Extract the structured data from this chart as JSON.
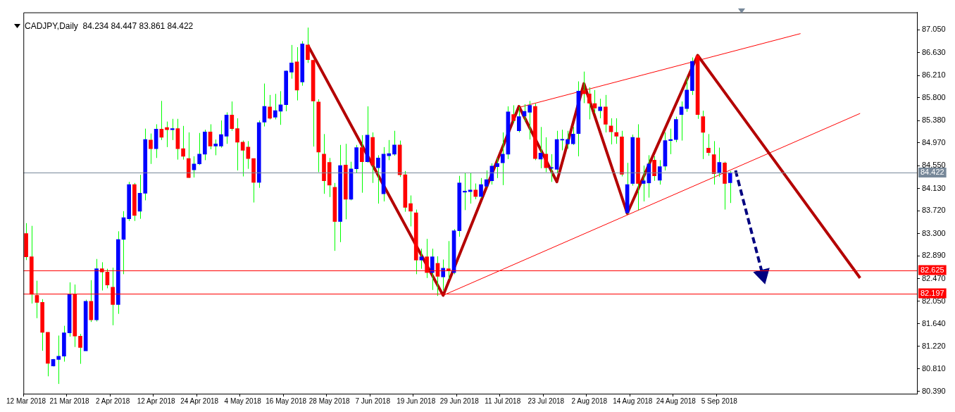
{
  "chart_data": {
    "type": "candlestick",
    "title": "CADJPY,Daily  84.234 84.447 83.861 84.422",
    "categories": [
      "12 Mar 2018",
      null,
      null,
      null,
      null,
      null,
      null,
      null,
      "21 Mar 2018",
      null,
      null,
      null,
      null,
      null,
      null,
      null,
      "2 Apr 2018",
      null,
      null,
      null,
      null,
      null,
      null,
      null,
      "12 Apr 2018",
      null,
      null,
      null,
      null,
      null,
      null,
      null,
      "24 Apr 2018",
      null,
      null,
      null,
      null,
      null,
      null,
      null,
      "4 May 2018",
      null,
      null,
      null,
      null,
      null,
      null,
      null,
      "16 May 2018",
      null,
      null,
      null,
      null,
      null,
      null,
      null,
      "28 May 2018",
      null,
      null,
      null,
      null,
      null,
      null,
      null,
      "7 Jun 2018",
      null,
      null,
      null,
      null,
      null,
      null,
      null,
      "19 Jun 2018",
      null,
      null,
      null,
      null,
      null,
      null,
      null,
      "29 Jun 2018",
      null,
      null,
      null,
      null,
      null,
      null,
      null,
      "11 Jul 2018",
      null,
      null,
      null,
      null,
      null,
      null,
      null,
      "23 Jul 2018",
      null,
      null,
      null,
      null,
      null,
      null,
      null,
      "2 Aug 2018",
      null,
      null,
      null,
      null,
      null,
      null,
      null,
      "14 Aug 2018",
      null,
      null,
      null,
      null,
      null,
      null,
      null,
      "24 Aug 2018",
      null,
      null,
      null,
      null,
      null,
      null,
      null,
      "5 Sep 2018",
      null,
      null,
      null,
      null,
      null,
      null,
      null,
      null,
      null,
      null,
      null,
      null,
      null,
      null,
      null,
      null,
      null,
      null,
      null,
      null,
      null,
      null,
      null,
      null,
      null,
      null,
      null,
      null,
      null,
      null,
      null,
      null,
      null,
      null,
      null,
      null
    ],
    "ylim": [
      80.35,
      87.37
    ],
    "yticks": [
      {
        "value": 80.39,
        "label": "80.390"
      },
      {
        "value": 80.81,
        "label": "80.810"
      },
      {
        "value": 81.22,
        "label": "81.220"
      },
      {
        "value": 81.64,
        "label": "81.640"
      },
      {
        "value": 82.05,
        "label": "82.050"
      },
      {
        "value": 82.47,
        "label": "82.470"
      },
      {
        "value": 82.89,
        "label": "82.890"
      },
      {
        "value": 83.3,
        "label": "83.300"
      },
      {
        "value": 83.72,
        "label": "83.720"
      },
      {
        "value": 84.13,
        "label": "84.130"
      },
      {
        "value": 84.55,
        "label": "84.550"
      },
      {
        "value": 84.97,
        "label": "84.970"
      },
      {
        "value": 85.38,
        "label": "85.380"
      },
      {
        "value": 85.8,
        "label": "85.800"
      },
      {
        "value": 86.21,
        "label": "86.210"
      },
      {
        "value": 86.63,
        "label": "86.630"
      },
      {
        "value": 87.05,
        "label": "87.050"
      }
    ],
    "ref_lines": [
      {
        "axis": "y",
        "value": 84.422,
        "label": "84.422",
        "color": "#778899"
      },
      {
        "axis": "y",
        "value": 82.625,
        "label": "82.625",
        "color": "#ff0000"
      },
      {
        "axis": "y",
        "value": 82.197,
        "label": "82.197",
        "color": "#ff0000"
      }
    ],
    "series": [
      {
        "type": "candlestick",
        "color": "#00ff00",
        "colors": [
          "#ff0000",
          "#ff0000",
          "#ff0000",
          "#ff0000",
          "#ff0000",
          "#0000ff",
          "#0000ff",
          "#0000ff",
          "#0000ff",
          "#ff0000",
          "#ff0000",
          "#0000ff",
          "#ff0000",
          "#0000ff",
          "#ff0000",
          "#ff0000",
          "#ff0000",
          "#0000ff",
          "#0000ff",
          "#0000ff",
          "#ff0000",
          "#0000ff",
          "#0000ff",
          "#ff0000",
          "#0000ff",
          "#ff0000",
          "#ff0000",
          "#0000ff",
          "#ff0000",
          "#ff0000",
          "#ff0000",
          "#0000ff",
          "#0000ff",
          "#0000ff",
          "#ff0000",
          "#0000ff",
          "#0000ff",
          "#0000ff",
          "#ff0000",
          "#ff0000",
          "#ff0000",
          "#ff0000",
          "#ff0000",
          "#0000ff",
          "#0000ff",
          "#ff0000",
          "#0000ff",
          "#0000ff",
          "#0000ff",
          "#0000ff",
          "#ff0000",
          "#0000ff",
          "#ff0000",
          "#ff0000",
          "#ff0000",
          "#ff0000",
          "#ff0000",
          "#ff0000",
          "#0000ff",
          "#ff0000",
          "#0000ff",
          "#0000ff",
          "#ff0000",
          "#0000ff",
          "#ff0000",
          "#0000ff",
          "#0000ff",
          "#0000ff",
          "#0000ff",
          "#ff0000",
          "#ff0000",
          "#ff0000",
          "#ff0000",
          "#0000ff",
          "#ff0000",
          "#0000ff",
          "#ff0000",
          "#0000ff",
          "#ff0000",
          "#0000ff",
          "#0000ff",
          "#0000ff",
          "#0000ff",
          "#ff0000",
          "#0000ff",
          "#0000ff",
          "#0000ff",
          "#0000ff",
          "#0000ff",
          "#0000ff",
          "#ff0000",
          "#0000ff",
          "#0000ff",
          "#0000ff",
          "#ff0000",
          "#0000ff",
          "#ff0000",
          "#0000ff",
          "#0000ff",
          "#0000ff",
          "#0000ff",
          "#0000ff",
          "#0000ff",
          "#ff0000",
          "#ff0000",
          "#ff0000",
          "#0000ff",
          "#ff0000",
          "#ff0000",
          "#ff0000",
          "#ff0000",
          "#0000ff",
          "#0000ff",
          "#ff0000",
          "#0000ff",
          "#0000ff",
          "#ff0000",
          "#0000ff",
          "#0000ff",
          "#0000ff",
          "#0000ff",
          "#0000ff",
          "#0000ff",
          "#0000ff",
          "#ff0000",
          "#ff0000",
          "#ff0000",
          "#ff0000",
          "#0000ff",
          "#ff0000",
          "#0000ff",
          null,
          null,
          null,
          null,
          null,
          null,
          null,
          null,
          null,
          null,
          null,
          null,
          null,
          null,
          null,
          null,
          null,
          null,
          null,
          null,
          null,
          null,
          null,
          null,
          null,
          null,
          null,
          null,
          null,
          null,
          null,
          null,
          null,
          null
        ],
        "ohlc": [
          [
            83.3,
            83.49,
            82.81,
            82.87
          ],
          [
            82.87,
            83.44,
            82.01,
            82.18
          ],
          [
            82.16,
            82.43,
            81.74,
            82.03
          ],
          [
            82.03,
            82.09,
            81.14,
            81.48
          ],
          [
            81.48,
            81.48,
            80.67,
            80.91
          ],
          [
            80.86,
            80.99,
            80.85,
            80.98
          ],
          [
            80.98,
            81.42,
            80.53,
            81.04
          ],
          [
            81.04,
            81.6,
            80.94,
            81.47
          ],
          [
            81.47,
            82.4,
            81.4,
            82.18
          ],
          [
            82.18,
            82.36,
            81.21,
            81.41
          ],
          [
            81.41,
            81.45,
            80.9,
            81.2
          ],
          [
            81.14,
            82.08,
            81.14,
            82.05
          ],
          [
            82.05,
            82.44,
            81.67,
            81.71
          ],
          [
            81.71,
            82.83,
            81.68,
            82.65
          ],
          [
            82.65,
            82.77,
            82.25,
            82.59
          ],
          [
            82.59,
            82.65,
            82.29,
            82.35
          ],
          [
            82.31,
            82.67,
            81.61,
            81.99
          ],
          [
            81.99,
            83.34,
            81.82,
            83.19
          ],
          [
            83.19,
            83.71,
            82.55,
            83.59
          ],
          [
            83.57,
            84.25,
            83.53,
            84.2
          ],
          [
            84.2,
            84.23,
            83.53,
            83.63
          ],
          [
            83.71,
            84.38,
            83.57,
            84.04
          ],
          [
            84.04,
            85.23,
            83.91,
            85.03
          ],
          [
            85.02,
            85.14,
            84.58,
            84.86
          ],
          [
            84.86,
            85.31,
            84.69,
            85.22
          ],
          [
            85.22,
            85.74,
            85.02,
            85.07
          ],
          [
            85.25,
            85.36,
            84.89,
            85.21
          ],
          [
            85.21,
            85.41,
            85.02,
            85.23
          ],
          [
            85.23,
            85.41,
            84.66,
            84.86
          ],
          [
            84.86,
            85.28,
            84.66,
            84.72
          ],
          [
            84.68,
            85.16,
            84.32,
            84.33
          ],
          [
            84.47,
            84.72,
            84.33,
            84.58
          ],
          [
            84.58,
            85.15,
            84.56,
            84.76
          ],
          [
            84.76,
            85.21,
            84.65,
            85.17
          ],
          [
            85.17,
            85.31,
            84.85,
            84.91
          ],
          [
            84.91,
            85.03,
            84.74,
            84.95
          ],
          [
            84.91,
            85.38,
            84.88,
            85.12
          ],
          [
            85.09,
            85.53,
            84.95,
            85.48
          ],
          [
            85.48,
            85.73,
            85.19,
            85.23
          ],
          [
            85.23,
            85.42,
            84.46,
            84.98
          ],
          [
            84.98,
            85.01,
            84.35,
            84.83
          ],
          [
            84.89,
            85.0,
            84.49,
            84.68
          ],
          [
            84.68,
            84.68,
            83.87,
            84.24
          ],
          [
            84.24,
            85.38,
            84.14,
            85.34
          ],
          [
            85.35,
            86.06,
            85.27,
            85.64
          ],
          [
            85.63,
            85.85,
            85.4,
            85.42
          ],
          [
            85.44,
            85.87,
            85.4,
            85.56
          ],
          [
            85.55,
            85.92,
            85.3,
            85.67
          ],
          [
            85.67,
            86.3,
            85.55,
            86.29
          ],
          [
            86.27,
            86.77,
            86.15,
            86.44
          ],
          [
            86.46,
            86.73,
            85.75,
            85.94
          ],
          [
            86.09,
            86.84,
            86.02,
            86.79
          ],
          [
            86.77,
            87.09,
            86.44,
            86.5
          ],
          [
            86.49,
            86.5,
            84.9,
            85.74
          ],
          [
            85.72,
            85.77,
            84.43,
            84.8
          ],
          [
            84.76,
            85.13,
            84.03,
            84.27
          ],
          [
            84.61,
            84.69,
            83.97,
            84.19
          ],
          [
            84.15,
            84.23,
            82.98,
            83.52
          ],
          [
            83.52,
            84.93,
            83.14,
            84.55
          ],
          [
            84.56,
            84.95,
            83.56,
            83.93
          ],
          [
            83.93,
            84.62,
            83.91,
            84.49
          ],
          [
            84.49,
            84.93,
            84.41,
            84.88
          ],
          [
            84.88,
            85.11,
            84.05,
            84.62
          ],
          [
            84.62,
            85.64,
            84.6,
            85.11
          ],
          [
            85.07,
            85.16,
            84.23,
            84.56
          ],
          [
            84.51,
            84.74,
            83.85,
            84.69
          ],
          [
            84.03,
            84.89,
            83.89,
            84.76
          ],
          [
            84.73,
            85.02,
            84.65,
            84.77
          ],
          [
            84.76,
            85.19,
            84.73,
            84.93
          ],
          [
            84.93,
            85.01,
            84.34,
            84.38
          ],
          [
            84.38,
            84.45,
            83.7,
            83.78
          ],
          [
            83.85,
            84.0,
            83.43,
            83.71
          ],
          [
            83.68,
            83.74,
            82.55,
            82.81
          ],
          [
            82.81,
            83.02,
            82.65,
            82.87
          ],
          [
            82.87,
            83.2,
            82.48,
            82.58
          ],
          [
            82.58,
            83.02,
            82.26,
            82.87
          ],
          [
            82.75,
            82.88,
            82.15,
            82.51
          ],
          [
            82.5,
            82.82,
            82.25,
            82.66
          ],
          [
            82.65,
            83.16,
            82.46,
            82.61
          ],
          [
            82.58,
            83.38,
            82.55,
            83.35
          ],
          [
            83.35,
            84.36,
            83.24,
            84.23
          ],
          [
            84.06,
            84.41,
            83.73,
            84.08
          ],
          [
            84.07,
            84.41,
            83.85,
            84.1
          ],
          [
            84.1,
            84.22,
            83.93,
            83.98
          ],
          [
            83.98,
            84.32,
            83.95,
            84.2
          ],
          [
            84.17,
            84.46,
            84.15,
            84.29
          ],
          [
            84.27,
            84.59,
            84.2,
            84.54
          ],
          [
            84.53,
            84.69,
            84.32,
            84.59
          ],
          [
            84.6,
            85.16,
            84.19,
            84.76
          ],
          [
            84.76,
            85.64,
            84.67,
            85.54
          ],
          [
            85.49,
            85.66,
            85.33,
            85.38
          ],
          [
            85.19,
            85.63,
            85.16,
            85.45
          ],
          [
            85.46,
            85.68,
            85.36,
            85.55
          ],
          [
            85.53,
            85.74,
            85.03,
            85.66
          ],
          [
            85.64,
            85.69,
            84.65,
            84.68
          ],
          [
            84.67,
            85.26,
            84.5,
            84.78
          ],
          [
            84.76,
            85.07,
            84.43,
            84.51
          ],
          [
            84.5,
            84.76,
            84.25,
            84.51
          ],
          [
            84.48,
            85.19,
            84.41,
            85.03
          ],
          [
            85.02,
            85.21,
            84.83,
            85.03
          ],
          [
            84.95,
            85.19,
            84.86,
            85.03
          ],
          [
            84.95,
            85.26,
            84.93,
            85.13
          ],
          [
            85.14,
            86.1,
            84.72,
            85.92
          ],
          [
            85.93,
            86.28,
            85.7,
            85.87
          ],
          [
            85.87,
            85.99,
            85.4,
            85.7
          ],
          [
            85.69,
            85.94,
            85.52,
            85.61
          ],
          [
            85.56,
            85.78,
            85.42,
            85.63
          ],
          [
            85.63,
            85.85,
            85.16,
            85.31
          ],
          [
            85.28,
            85.42,
            84.94,
            85.17
          ],
          [
            85.16,
            85.42,
            84.95,
            85.09
          ],
          [
            85.08,
            85.19,
            84.35,
            84.39
          ],
          [
            83.68,
            84.6,
            83.66,
            84.2
          ],
          [
            84.22,
            85.12,
            84.18,
            85.07
          ],
          [
            85.06,
            85.31,
            83.73,
            84.22
          ],
          [
            84.22,
            84.55,
            83.89,
            84.27
          ],
          [
            84.23,
            84.74,
            83.96,
            84.58
          ],
          [
            84.65,
            84.72,
            84.27,
            84.36
          ],
          [
            84.28,
            84.65,
            84.2,
            84.53
          ],
          [
            84.54,
            85.16,
            84.46,
            85.01
          ],
          [
            85.01,
            85.23,
            84.76,
            85.03
          ],
          [
            85.03,
            85.45,
            84.98,
            85.4
          ],
          [
            85.49,
            85.73,
            85.01,
            85.63
          ],
          [
            85.6,
            86.18,
            85.54,
            85.94
          ],
          [
            85.93,
            86.54,
            85.85,
            86.47
          ],
          [
            86.57,
            86.58,
            85.41,
            85.49
          ],
          [
            85.45,
            85.56,
            84.67,
            85.16
          ],
          [
            84.87,
            85.13,
            84.73,
            84.79
          ],
          [
            84.75,
            85.0,
            84.2,
            84.4
          ],
          [
            84.41,
            84.88,
            84.34,
            84.61
          ],
          [
            84.6,
            84.62,
            83.74,
            84.22
          ],
          [
            84.234,
            84.447,
            83.861,
            84.422
          ],
          null,
          null,
          null,
          null,
          null,
          null,
          null,
          null,
          null,
          null,
          null,
          null,
          null,
          null,
          null,
          null,
          null,
          null,
          null,
          null,
          null,
          null,
          null,
          null,
          null,
          null,
          null,
          null,
          null,
          null,
          null,
          null,
          null,
          null
        ]
      },
      {
        "type": "line",
        "color": "#b40000",
        "values": [
          null,
          null,
          null,
          null,
          null,
          null,
          null,
          null,
          null,
          null,
          null,
          null,
          null,
          null,
          null,
          null,
          null,
          null,
          null,
          null,
          null,
          null,
          null,
          null,
          null,
          null,
          null,
          null,
          null,
          null,
          null,
          null,
          null,
          null,
          null,
          null,
          null,
          null,
          null,
          null,
          null,
          null,
          null,
          null,
          null,
          null,
          null,
          null,
          null,
          null,
          null,
          null,
          86.77,
          null,
          null,
          null,
          null,
          null,
          null,
          null,
          null,
          null,
          null,
          null,
          null,
          null,
          null,
          null,
          null,
          null,
          null,
          null,
          null,
          null,
          null,
          null,
          null,
          82.16,
          null,
          null,
          null,
          null,
          null,
          null,
          null,
          null,
          null,
          null,
          null,
          null,
          null,
          85.64,
          null,
          null,
          null,
          null,
          null,
          null,
          84.25,
          null,
          null,
          null,
          null,
          86.06,
          null,
          null,
          null,
          null,
          null,
          null,
          null,
          83.67,
          null,
          null,
          null,
          null,
          null,
          null,
          null,
          null,
          null,
          null,
          null,
          null,
          86.58,
          null,
          null,
          null,
          null,
          null,
          null,
          null,
          null,
          null,
          null,
          null,
          null,
          null,
          null,
          null,
          null,
          null,
          null,
          null,
          null,
          null,
          null,
          null,
          null,
          null,
          null,
          null,
          null,
          null,
          82.48,
          null,
          null,
          null,
          null,
          null,
          null,
          null,
          null,
          null,
          null
        ]
      },
      {
        "type": "line",
        "color": "#ff0000",
        "values": [
          null,
          null,
          null,
          null,
          null,
          null,
          null,
          null,
          null,
          null,
          null,
          null,
          null,
          null,
          null,
          null,
          null,
          null,
          null,
          null,
          null,
          null,
          null,
          null,
          null,
          null,
          null,
          null,
          null,
          null,
          null,
          null,
          null,
          null,
          null,
          null,
          null,
          null,
          null,
          null,
          null,
          null,
          null,
          null,
          null,
          null,
          null,
          null,
          null,
          null,
          null,
          null,
          null,
          null,
          null,
          null,
          null,
          null,
          null,
          null,
          null,
          null,
          null,
          null,
          null,
          null,
          null,
          null,
          null,
          null,
          null,
          null,
          null,
          null,
          null,
          null,
          null,
          null,
          null,
          null,
          null,
          null,
          null,
          null,
          null,
          null,
          null,
          null,
          null,
          null,
          null,
          85.62,
          null,
          null,
          null,
          null,
          null,
          null,
          null,
          null,
          null,
          null,
          null,
          null,
          null,
          null,
          null,
          null,
          null,
          null,
          null,
          null,
          null,
          null,
          null,
          null,
          null,
          null,
          null,
          null,
          null,
          null,
          null,
          null,
          null,
          null,
          null,
          null,
          null,
          null,
          null,
          null,
          null,
          null,
          null,
          null,
          null,
          null,
          null,
          null,
          null,
          null,
          null,
          86.98,
          null,
          null,
          null,
          null,
          null,
          null,
          null,
          null,
          null,
          null,
          null,
          null,
          null,
          null,
          null,
          null,
          null,
          null,
          null,
          null,
          null
        ]
      },
      {
        "type": "line",
        "color": "#ff0000",
        "values": [
          null,
          null,
          null,
          null,
          null,
          null,
          null,
          null,
          null,
          null,
          null,
          null,
          null,
          null,
          null,
          null,
          null,
          null,
          null,
          null,
          null,
          null,
          null,
          null,
          null,
          null,
          null,
          null,
          null,
          null,
          null,
          null,
          null,
          null,
          null,
          null,
          null,
          null,
          null,
          null,
          null,
          null,
          null,
          null,
          null,
          null,
          null,
          null,
          null,
          null,
          null,
          null,
          null,
          null,
          null,
          null,
          null,
          null,
          null,
          null,
          null,
          null,
          null,
          null,
          null,
          null,
          null,
          null,
          null,
          null,
          null,
          null,
          null,
          null,
          null,
          null,
          null,
          82.16,
          null,
          null,
          null,
          null,
          null,
          null,
          null,
          null,
          null,
          null,
          null,
          null,
          null,
          null,
          null,
          null,
          null,
          null,
          null,
          null,
          null,
          null,
          null,
          null,
          null,
          null,
          null,
          null,
          null,
          null,
          null,
          null,
          null,
          null,
          null,
          null,
          null,
          null,
          null,
          null,
          null,
          null,
          null,
          null,
          null,
          null,
          null,
          null,
          null,
          null,
          null,
          null,
          null,
          null,
          null,
          null,
          null,
          null,
          null,
          null,
          null,
          null,
          null,
          null,
          null,
          null,
          null,
          null,
          null,
          null,
          null,
          null,
          null,
          null,
          null,
          null,
          85.51,
          null,
          null,
          null,
          null,
          null,
          null,
          null,
          null,
          null,
          null
        ]
      },
      {
        "type": "line",
        "color": "#000080",
        "line_style": "dashed",
        "marker": "triangle",
        "values": [
          null,
          null,
          null,
          null,
          null,
          null,
          null,
          null,
          null,
          null,
          null,
          null,
          null,
          null,
          null,
          null,
          null,
          null,
          null,
          null,
          null,
          null,
          null,
          null,
          null,
          null,
          null,
          null,
          null,
          null,
          null,
          null,
          null,
          null,
          null,
          null,
          null,
          null,
          null,
          null,
          null,
          null,
          null,
          null,
          null,
          null,
          null,
          null,
          null,
          null,
          null,
          null,
          null,
          null,
          null,
          null,
          null,
          null,
          null,
          null,
          null,
          null,
          null,
          null,
          null,
          null,
          null,
          null,
          null,
          null,
          null,
          null,
          null,
          null,
          null,
          null,
          null,
          null,
          null,
          null,
          null,
          null,
          null,
          null,
          null,
          null,
          null,
          null,
          null,
          null,
          null,
          null,
          null,
          null,
          null,
          null,
          null,
          null,
          null,
          null,
          null,
          null,
          null,
          null,
          null,
          null,
          null,
          null,
          null,
          null,
          null,
          null,
          null,
          null,
          null,
          null,
          null,
          null,
          null,
          null,
          null,
          null,
          null,
          null,
          null,
          null,
          null,
          null,
          null,
          null,
          null,
          84.46,
          null,
          null,
          null,
          null,
          82.54,
          null,
          null,
          null,
          null,
          null,
          null,
          null,
          null,
          null,
          null,
          null,
          null,
          null,
          null,
          null,
          null,
          null,
          null,
          null,
          null,
          null,
          null,
          null,
          null,
          null,
          null,
          null,
          null
        ]
      }
    ]
  }
}
